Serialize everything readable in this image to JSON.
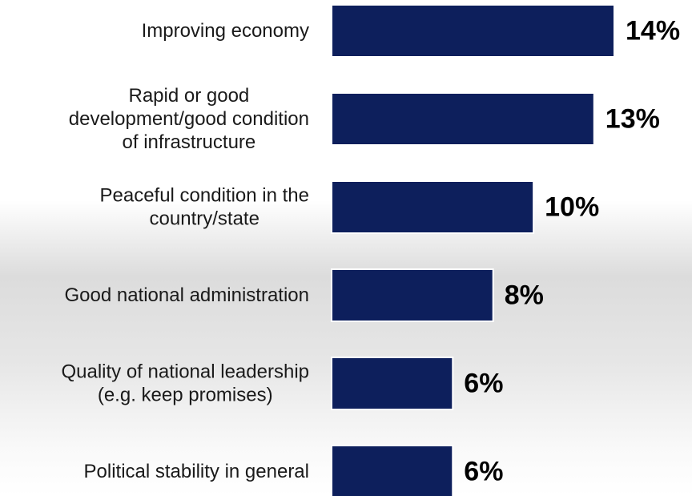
{
  "chart_data": {
    "type": "bar",
    "orientation": "horizontal",
    "title": "",
    "xlabel": "",
    "ylabel": "",
    "categories": [
      [
        "Improving economy"
      ],
      [
        "Rapid or good",
        "development/good condition",
        "of infrastructure"
      ],
      [
        "Peaceful condition in the",
        "country/state"
      ],
      [
        "Good national administration"
      ],
      [
        "Quality of national leadership",
        "(e.g. keep promises)"
      ],
      [
        "Political stability in general"
      ]
    ],
    "values": [
      14,
      13,
      10,
      8,
      6,
      6
    ],
    "value_labels": [
      "14%",
      "13%",
      "10%",
      "8%",
      "6%",
      "6%"
    ],
    "xlim": [
      0,
      14
    ],
    "grid": false,
    "legend": "none",
    "bar_color": "#0d1f5c",
    "bar_border_color": "#ffffff"
  }
}
